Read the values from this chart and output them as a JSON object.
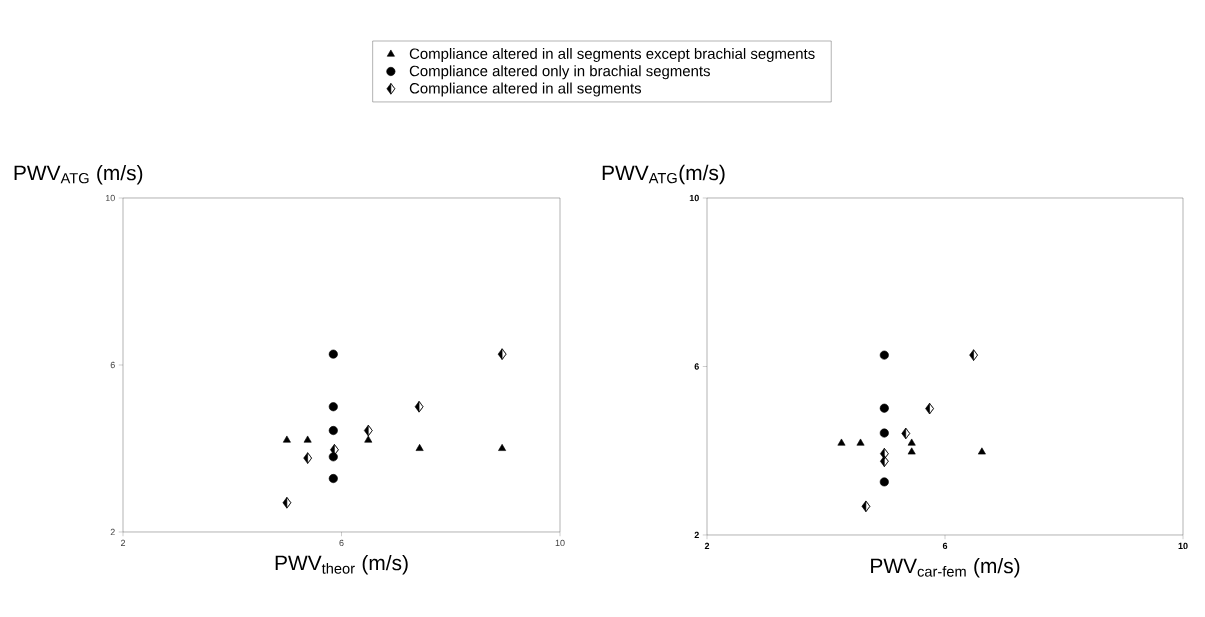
{
  "chart_data": [
    {
      "type": "scatter",
      "xlabel": "PWV$_{theor}$ (m/s)",
      "ylabel": "PWV$_{ATG}$ (m/s)",
      "xlim": [
        2,
        10
      ],
      "ylim": [
        2,
        10
      ],
      "xticks": [
        2,
        6,
        10
      ],
      "yticks": [
        2,
        6,
        10
      ],
      "legend": "top",
      "series": [
        {
          "name": "Compliance altered in all segments except brachial segments",
          "color": "#000000",
          "marker": "triangle",
          "x": [
            5.0,
            5.38,
            6.49,
            7.43,
            8.94
          ],
          "values": [
            4.2,
            4.2,
            4.2,
            4.0,
            4.0
          ]
        },
        {
          "name": "Compliance altered only in brachial segments",
          "color": "#000000",
          "marker": "circle",
          "x": [
            5.85,
            5.85,
            5.85,
            5.85,
            5.85
          ],
          "values": [
            6.26,
            5.0,
            4.43,
            3.8,
            3.28
          ]
        },
        {
          "name": "Compliance altered in all segments",
          "color": "#000000",
          "marker": "diamond",
          "x": [
            5.0,
            5.38,
            5.87,
            6.49,
            7.42,
            8.94
          ],
          "values": [
            2.7,
            3.77,
            3.97,
            4.43,
            5.0,
            6.26
          ]
        }
      ]
    },
    {
      "type": "scatter",
      "xlabel": "PWV$_{car-fem}$ (m/s)",
      "ylabel": "PWV$_{ATG}$(m/s)",
      "xlim": [
        2,
        10
      ],
      "ylim": [
        2,
        10
      ],
      "xticks": [
        2,
        6,
        10
      ],
      "yticks": [
        2,
        6,
        10
      ],
      "series": [
        {
          "color": "#000000",
          "marker": "triangle",
          "x": [
            4.26,
            4.58,
            5.44,
            5.44,
            6.62
          ],
          "values": [
            4.18,
            4.18,
            4.18,
            3.97,
            3.97
          ]
        },
        {
          "color": "#000000",
          "marker": "circle",
          "x": [
            4.98,
            4.98,
            4.98,
            4.98
          ],
          "values": [
            6.27,
            5.01,
            4.42,
            3.26
          ]
        },
        {
          "color": "#000000",
          "marker": "diamond",
          "x": [
            4.67,
            4.98,
            4.98,
            5.34,
            5.74,
            6.48
          ],
          "values": [
            2.68,
            3.93,
            3.75,
            4.41,
            5.0,
            6.27
          ]
        }
      ]
    }
  ]
}
